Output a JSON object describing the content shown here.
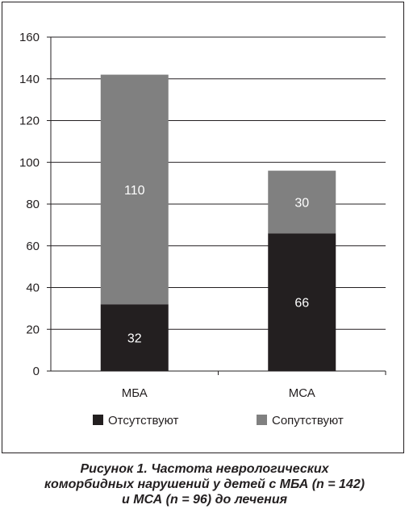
{
  "chart_data": {
    "type": "bar",
    "stacked": true,
    "categories": [
      "МБА",
      "МСА"
    ],
    "series": [
      {
        "name": "Отсутствуют",
        "values": [
          32,
          66
        ],
        "color": "#231f20",
        "label_color": "#ffffff"
      },
      {
        "name": "Сопутствуют",
        "values": [
          110,
          30
        ],
        "color": "#808080",
        "label_color": "#ffffff"
      }
    ],
    "ylim": [
      0,
      160
    ],
    "yticks": [
      "0",
      "20",
      "40",
      "60",
      "80",
      "100",
      "120",
      "140",
      "160"
    ],
    "grid": true,
    "legend_position": "bottom"
  },
  "caption": {
    "line1": "Рисунок 1. Частота неврологических",
    "line2": "коморбидных нарушений у детей с МБА (n = 142)",
    "line3": "и МСА (n = 96) до лечения"
  }
}
